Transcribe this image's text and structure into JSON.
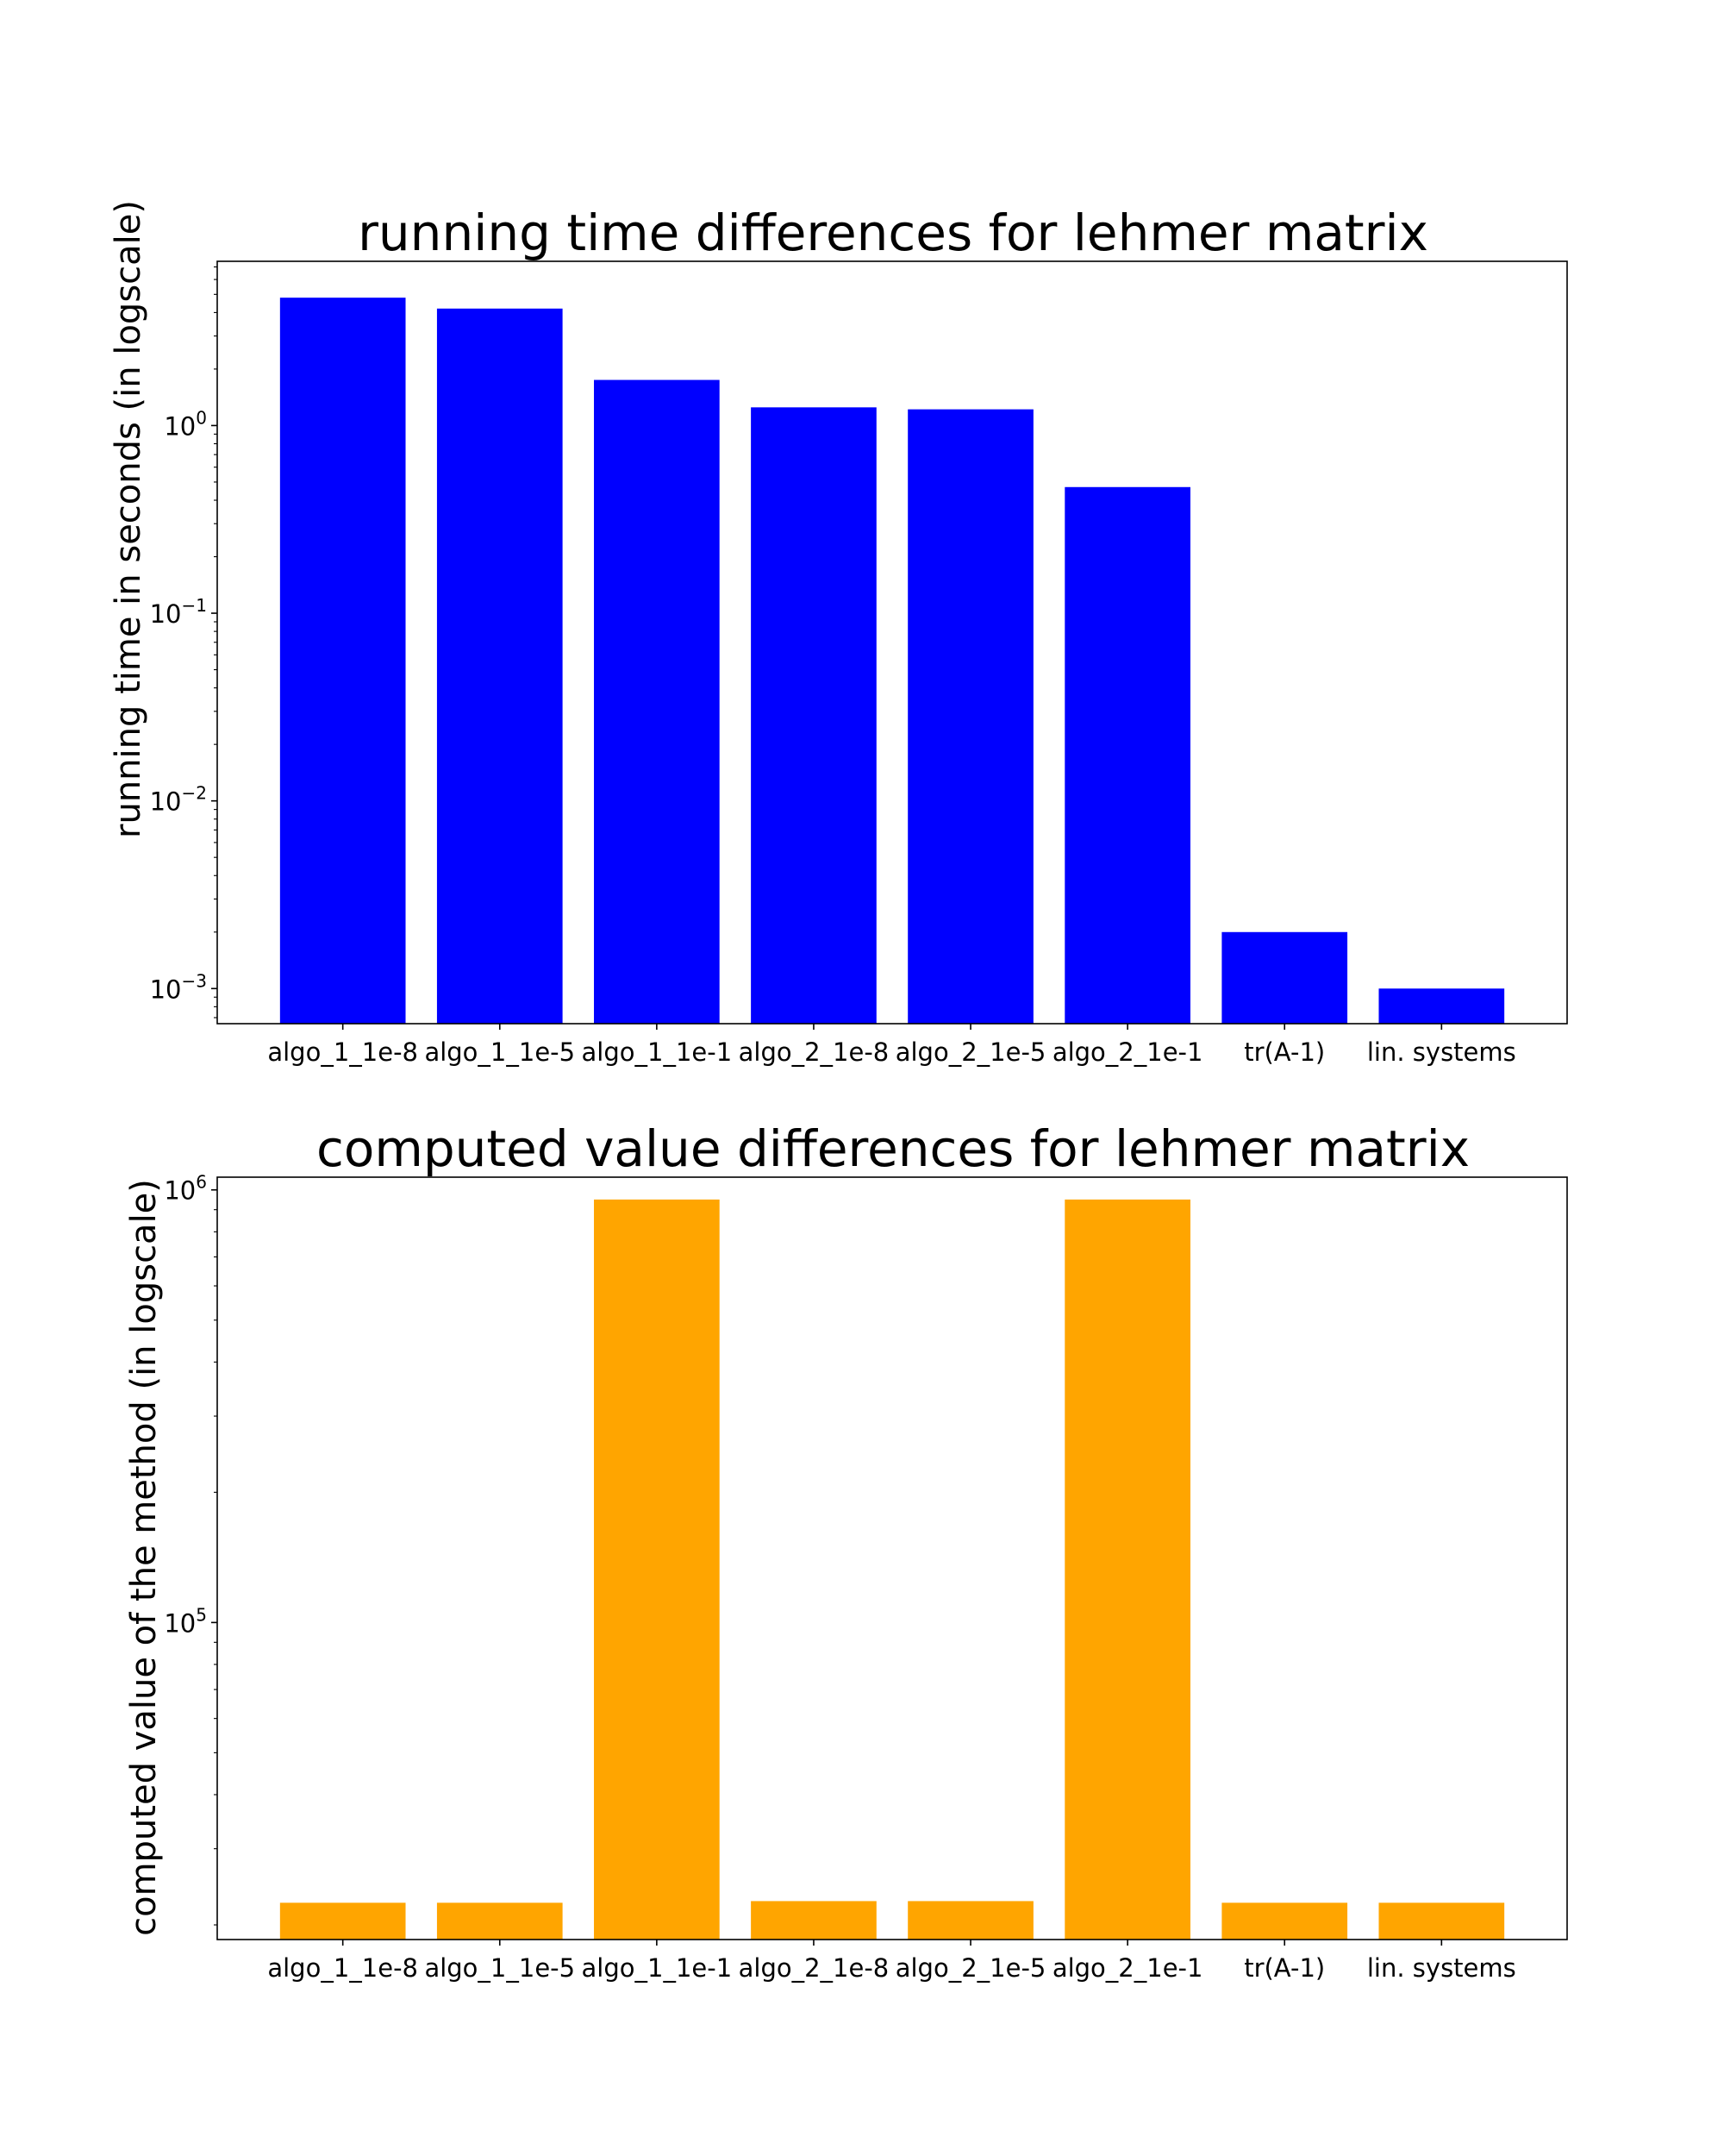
{
  "colors": {
    "chart1_bar": "#0000ff",
    "chart2_bar": "#ffa500"
  },
  "chart_data": [
    {
      "type": "bar",
      "title": "running time differences for lehmer matrix",
      "xlabel": "",
      "ylabel": "running time in seconds (in logscale)",
      "yscale": "log",
      "ylim": [
        0.00065,
        7.5
      ],
      "yticks": [
        {
          "base": "10",
          "exp": "0",
          "value": 1
        },
        {
          "base": "10",
          "exp": "−1",
          "value": 0.1
        },
        {
          "base": "10",
          "exp": "−2",
          "value": 0.01
        },
        {
          "base": "10",
          "exp": "−3",
          "value": 0.001
        }
      ],
      "categories": [
        "algo_1_1e-8",
        "algo_1_1e-5",
        "algo_1_1e-1",
        "algo_2_1e-8",
        "algo_2_1e-5",
        "algo_2_1e-1",
        "tr(A-1)",
        "lin. systems"
      ],
      "values": [
        4.8,
        4.2,
        1.75,
        1.25,
        1.22,
        0.47,
        0.002,
        0.001
      ],
      "grid": false
    },
    {
      "type": "bar",
      "title": "computed value differences for lehmer matrix",
      "xlabel": "",
      "ylabel": "computed value of the method (in logscale)",
      "yscale": "log",
      "ylim": [
        18500,
        1070000
      ],
      "yticks": [
        {
          "base": "10",
          "exp": "6",
          "value": 1000000
        },
        {
          "base": "10",
          "exp": "5",
          "value": 100000
        }
      ],
      "categories": [
        "algo_1_1e-8",
        "algo_1_1e-5",
        "algo_1_1e-1",
        "algo_2_1e-8",
        "algo_2_1e-5",
        "algo_2_1e-1",
        "tr(A-1)",
        "lin. systems"
      ],
      "values": [
        22500,
        22500,
        950000,
        22700,
        22700,
        950000,
        22500,
        22500
      ],
      "grid": false
    }
  ]
}
